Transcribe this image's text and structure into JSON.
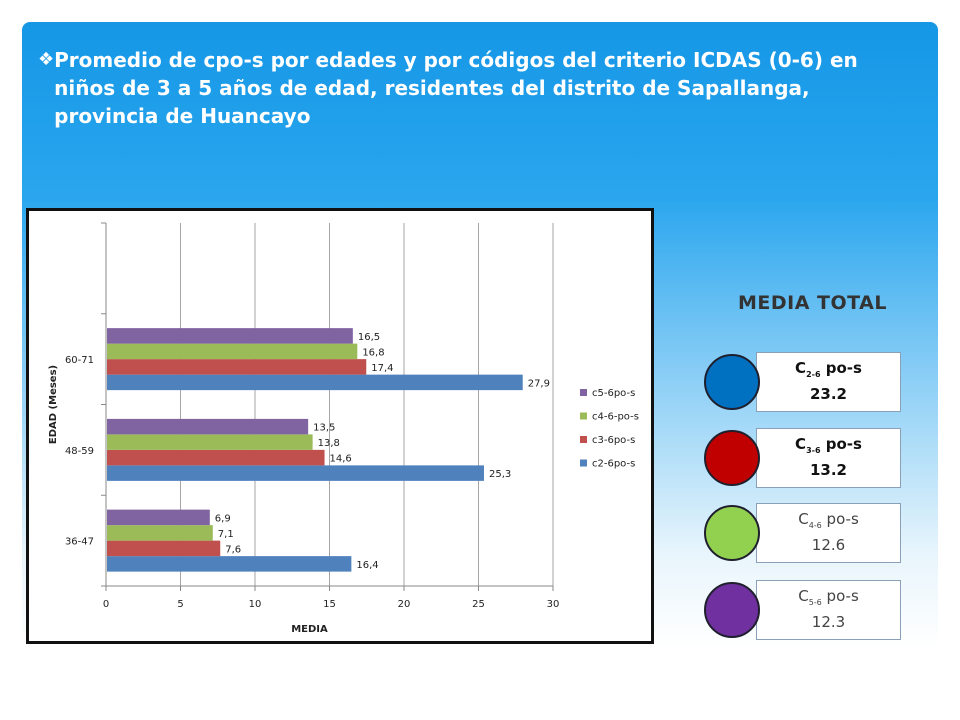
{
  "title": "Promedio de cpo-s  por edades y por códigos del criterio ICDAS (0-6) en niños de 3 a 5 años de edad, residentes del distrito de Sapallanga, provincia de Huancayo",
  "bullet_icon": "diamond-bullet-icon",
  "media_total": {
    "heading": "MEDIA TOTAL",
    "items": [
      {
        "prefix": "C",
        "sub": "2-6",
        "suffix": " po-s",
        "value": "23.2",
        "color": "#0070c0"
      },
      {
        "prefix": "C",
        "sub": "3-6",
        "suffix": " po-s",
        "value": "13.2",
        "color": "#c00000"
      },
      {
        "prefix": "C",
        "sub": "4-6",
        "suffix": " po-s",
        "value": "12.6",
        "color": "#92d050"
      },
      {
        "prefix": "C",
        "sub": "5-6",
        "suffix": " po-s",
        "value": "12.3",
        "color": "#7030a0"
      }
    ]
  },
  "chart_data": {
    "type": "bar",
    "orientation": "horizontal",
    "categories": [
      "36-47",
      "48-59",
      "60-71"
    ],
    "series": [
      {
        "name": "c2-6po-s",
        "color": "#4f81bd",
        "values": [
          16.4,
          25.3,
          27.9
        ],
        "labels": [
          "16,4",
          "25,3",
          "27,9"
        ]
      },
      {
        "name": "c3-6po-s",
        "color": "#c0504d",
        "values": [
          7.6,
          14.6,
          17.4
        ],
        "labels": [
          "7,6",
          "14,6",
          "17,4"
        ]
      },
      {
        "name": "c4-6-po-s",
        "color": "#9bbb59",
        "values": [
          7.1,
          13.8,
          16.8
        ],
        "labels": [
          "7,1",
          "13,8",
          "16,8"
        ]
      },
      {
        "name": "c5-6po-s",
        "color": "#8064a2",
        "values": [
          6.9,
          13.5,
          16.5
        ],
        "labels": [
          "6,9",
          "13,5",
          "16,5"
        ]
      }
    ],
    "xlabel": "MEDIA",
    "ylabel": "EDAD (Meses)",
    "xlim": [
      0,
      30
    ],
    "xticks": [
      "0",
      "5",
      "10",
      "15",
      "20",
      "25",
      "30"
    ],
    "grid": true,
    "legend_position": "right"
  }
}
